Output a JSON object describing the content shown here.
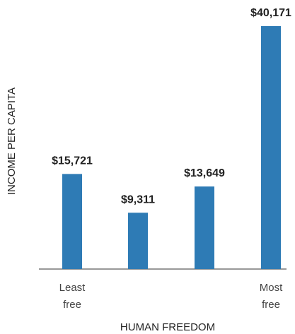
{
  "chart_data": {
    "type": "bar",
    "x_label": "HUMAN FREEDOM",
    "y_label": "INCOME PER CAPITA",
    "categories": [
      "Least free",
      null,
      null,
      "Most free"
    ],
    "values": [
      15721,
      9311,
      13649,
      40171
    ],
    "value_labels": [
      "$15,721",
      "$9,311",
      "$13,649",
      "$40,171"
    ],
    "color": "#2e7bb5"
  }
}
